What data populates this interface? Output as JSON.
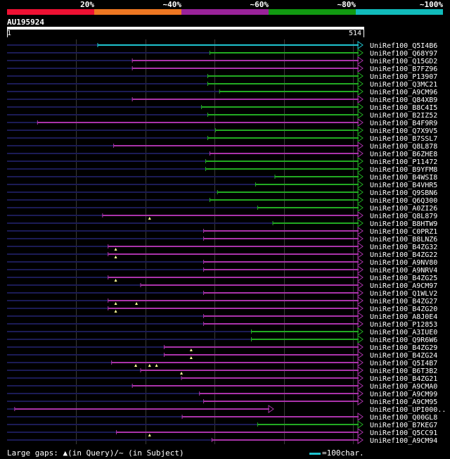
{
  "legend": {
    "labels": [
      "20%",
      "~40%",
      "~60%",
      "~80%",
      "~100%"
    ],
    "colors": [
      "#ee1133",
      "#ee7722",
      "#992299",
      "#119911",
      "#11bbbb"
    ]
  },
  "query": {
    "id": "AU195924",
    "start": "1",
    "end": "514",
    "length": 514
  },
  "footer": {
    "large_gaps_text": "Large gaps: ▲(in Query)/~ (in Subject)",
    "scale_text": "=100char."
  },
  "hits": [
    {
      "label": "UniRef100_Q5I4B6",
      "start": 131,
      "color": "cyan",
      "gaps": []
    },
    {
      "label": "UniRef100_Q68Y97",
      "start": 293,
      "color": "green",
      "gaps": []
    },
    {
      "label": "UniRef100_Q15GD2",
      "start": 181,
      "color": "purple",
      "gaps": []
    },
    {
      "label": "UniRef100_B7FZ96",
      "start": 181,
      "color": "purple",
      "gaps": []
    },
    {
      "label": "UniRef100_P13907",
      "start": 290,
      "color": "green",
      "gaps": []
    },
    {
      "label": "UniRef100_Q3MC21",
      "start": 290,
      "color": "green",
      "gaps": []
    },
    {
      "label": "UniRef100_A9CM96",
      "start": 307,
      "color": "green",
      "gaps": []
    },
    {
      "label": "UniRef100_Q84XB9",
      "start": 181,
      "color": "purple",
      "gaps": []
    },
    {
      "label": "UniRef100_B8C4I5",
      "start": 281,
      "color": "green",
      "gaps": []
    },
    {
      "label": "UniRef100_B2IZ52",
      "start": 290,
      "color": "green",
      "gaps": []
    },
    {
      "label": "UniRef100_B4F9R9",
      "start": 44,
      "color": "purple",
      "gaps": []
    },
    {
      "label": "UniRef100_Q7X9V5",
      "start": 301,
      "color": "green",
      "gaps": []
    },
    {
      "label": "UniRef100_B7SSL7",
      "start": 290,
      "color": "green",
      "gaps": []
    },
    {
      "label": "UniRef100_Q8L878",
      "start": 154,
      "color": "purple",
      "gaps": []
    },
    {
      "label": "UniRef100_B6ZHE8",
      "start": 293,
      "color": "purple",
      "gaps": []
    },
    {
      "label": "UniRef100_P11472",
      "start": 287,
      "color": "green",
      "gaps": []
    },
    {
      "label": "UniRef100_B9YFM8",
      "start": 287,
      "color": "green",
      "gaps": []
    },
    {
      "label": "UniRef100_B4WSI8",
      "start": 387,
      "color": "green",
      "gaps": []
    },
    {
      "label": "UniRef100_B4VHR5",
      "start": 359,
      "color": "green",
      "gaps": []
    },
    {
      "label": "UniRef100_Q9SBN6",
      "start": 304,
      "color": "green",
      "gaps": []
    },
    {
      "label": "UniRef100_Q6Q300",
      "start": 293,
      "color": "green",
      "gaps": []
    },
    {
      "label": "UniRef100_A0ZI26",
      "start": 362,
      "color": "green",
      "gaps": []
    },
    {
      "label": "UniRef100_Q8L879",
      "start": 138,
      "color": "purple",
      "gaps": [
        206
      ]
    },
    {
      "label": "UniRef100_B8HTW9",
      "start": 384,
      "color": "green",
      "gaps": []
    },
    {
      "label": "UniRef100_C0PRZ1",
      "start": 284,
      "color": "purple",
      "gaps": []
    },
    {
      "label": "UniRef100_B8LNZ6",
      "start": 284,
      "color": "purple",
      "gaps": []
    },
    {
      "label": "UniRef100_B4ZG32",
      "start": 146,
      "color": "purple",
      "gaps": [
        157
      ]
    },
    {
      "label": "UniRef100_B4ZG22",
      "start": 146,
      "color": "purple",
      "gaps": [
        157
      ]
    },
    {
      "label": "UniRef100_A9NV80",
      "start": 284,
      "color": "purple",
      "gaps": []
    },
    {
      "label": "UniRef100_A9NRV4",
      "start": 284,
      "color": "purple",
      "gaps": []
    },
    {
      "label": "UniRef100_B4ZG25",
      "start": 146,
      "color": "purple",
      "gaps": [
        157
      ]
    },
    {
      "label": "UniRef100_A9CM97",
      "start": 193,
      "color": "purple",
      "gaps": []
    },
    {
      "label": "UniRef100_Q1WLV2",
      "start": 284,
      "color": "purple",
      "gaps": []
    },
    {
      "label": "UniRef100_B4ZG27",
      "start": 146,
      "color": "purple",
      "gaps": [
        157,
        187
      ]
    },
    {
      "label": "UniRef100_B4ZG20",
      "start": 146,
      "color": "purple",
      "gaps": [
        157
      ]
    },
    {
      "label": "UniRef100_A8J0E4",
      "start": 284,
      "color": "purple",
      "gaps": []
    },
    {
      "label": "UniRef100_P12853",
      "start": 284,
      "color": "purple",
      "gaps": []
    },
    {
      "label": "UniRef100_A3IUE0",
      "start": 353,
      "color": "green",
      "gaps": []
    },
    {
      "label": "UniRef100_Q9R6W6",
      "start": 353,
      "color": "green",
      "gaps": []
    },
    {
      "label": "UniRef100_B4ZG29",
      "start": 227,
      "color": "purple",
      "gaps": [
        266
      ]
    },
    {
      "label": "UniRef100_B4ZG24",
      "start": 227,
      "color": "purple",
      "gaps": [
        266
      ]
    },
    {
      "label": "UniRef100_Q5I4B7",
      "start": 151,
      "color": "purple",
      "gaps": [
        186,
        206,
        216
      ]
    },
    {
      "label": "UniRef100_B6T3B2",
      "start": 193,
      "color": "purple",
      "gaps": [
        252
      ]
    },
    {
      "label": "UniRef100_B4ZG21",
      "start": 252,
      "color": "purple",
      "gaps": []
    },
    {
      "label": "UniRef100_A9CMA0",
      "start": 181,
      "color": "purple",
      "gaps": []
    },
    {
      "label": "UniRef100_A9CM99",
      "start": 278,
      "color": "purple",
      "gaps": []
    },
    {
      "label": "UniRef100_A9CM95",
      "start": 284,
      "color": "purple",
      "gaps": []
    },
    {
      "label": "UniRef100_UPI000..",
      "start": 11,
      "color": "purple",
      "gaps": [],
      "end": 385
    },
    {
      "label": "UniRef100_Q00GL8",
      "start": 253,
      "color": "purple",
      "gaps": []
    },
    {
      "label": "UniRef100_B7KEG7",
      "start": 362,
      "color": "green",
      "gaps": []
    },
    {
      "label": "UniRef100_Q5CC91",
      "start": 158,
      "color": "purple",
      "gaps": [
        206
      ]
    },
    {
      "label": "UniRef100_A9CM94",
      "start": 296,
      "color": "purple",
      "gaps": []
    }
  ]
}
